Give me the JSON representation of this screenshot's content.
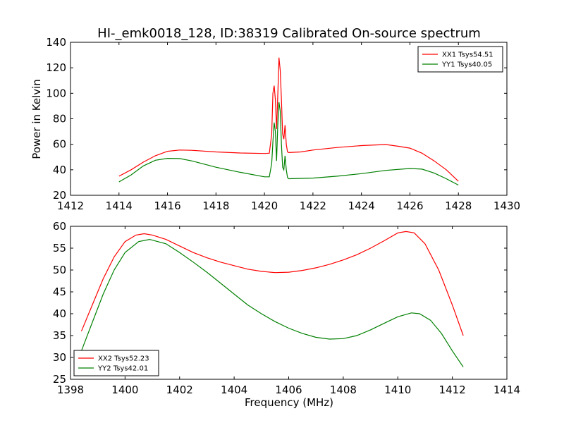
{
  "title": "HI-_emk0018_128, ID:38319 Calibrated On-source spectrum",
  "colors": {
    "red": "#ff0000",
    "green": "#008000",
    "axes": "#000000",
    "background": "#ffffff"
  },
  "chart_data": [
    {
      "type": "line",
      "ylabel": "Power in Kelvin",
      "xlabel": "",
      "xlim": [
        1412,
        1430
      ],
      "ylim": [
        20,
        140
      ],
      "xticks": [
        "1412",
        "1414",
        "1416",
        "1418",
        "1420",
        "1422",
        "1424",
        "1426",
        "1428",
        "1430"
      ],
      "yticks": [
        "20",
        "40",
        "60",
        "80",
        "100",
        "120",
        "140"
      ],
      "grid": false,
      "legend": "top-right",
      "series": [
        {
          "name": "XX1 Tsys54.51",
          "color": "#ff0000",
          "points": [
            [
              1414.0,
              35
            ],
            [
              1414.5,
              40
            ],
            [
              1415.0,
              46
            ],
            [
              1415.5,
              51
            ],
            [
              1416.0,
              54.5
            ],
            [
              1416.5,
              55.5
            ],
            [
              1417.0,
              55.3
            ],
            [
              1418.0,
              54
            ],
            [
              1419.0,
              53.2
            ],
            [
              1420.0,
              52.8
            ],
            [
              1420.2,
              53
            ],
            [
              1420.3,
              68
            ],
            [
              1420.35,
              100
            ],
            [
              1420.4,
              106
            ],
            [
              1420.45,
              95
            ],
            [
              1420.5,
              72
            ],
            [
              1420.55,
              98
            ],
            [
              1420.6,
              128
            ],
            [
              1420.65,
              118
            ],
            [
              1420.7,
              95
            ],
            [
              1420.75,
              68
            ],
            [
              1420.8,
              64
            ],
            [
              1420.85,
              75
            ],
            [
              1420.9,
              60
            ],
            [
              1420.95,
              54
            ],
            [
              1421.0,
              53.5
            ],
            [
              1421.5,
              54
            ],
            [
              1422.0,
              55.5
            ],
            [
              1423.0,
              57.5
            ],
            [
              1424.0,
              59
            ],
            [
              1425.0,
              59.8
            ],
            [
              1425.5,
              58.5
            ],
            [
              1426.0,
              57
            ],
            [
              1426.5,
              53
            ],
            [
              1427.0,
              47
            ],
            [
              1427.5,
              40
            ],
            [
              1428.0,
              31
            ]
          ]
        },
        {
          "name": "YY1 Tsys40.05",
          "color": "#008000",
          "points": [
            [
              1414.0,
              30.5
            ],
            [
              1414.5,
              36
            ],
            [
              1415.0,
              43
            ],
            [
              1415.5,
              47.5
            ],
            [
              1416.0,
              49
            ],
            [
              1416.5,
              48.8
            ],
            [
              1417.0,
              47
            ],
            [
              1418.0,
              42
            ],
            [
              1419.0,
              38
            ],
            [
              1420.0,
              34.5
            ],
            [
              1420.2,
              34.5
            ],
            [
              1420.3,
              45
            ],
            [
              1420.35,
              62
            ],
            [
              1420.4,
              77
            ],
            [
              1420.45,
              70
            ],
            [
              1420.5,
              47
            ],
            [
              1420.55,
              75
            ],
            [
              1420.6,
              93
            ],
            [
              1420.65,
              86
            ],
            [
              1420.7,
              60
            ],
            [
              1420.75,
              42
            ],
            [
              1420.8,
              40
            ],
            [
              1420.85,
              51
            ],
            [
              1420.9,
              40
            ],
            [
              1420.95,
              34
            ],
            [
              1421.0,
              33
            ],
            [
              1422.0,
              33.5
            ],
            [
              1423.0,
              35
            ],
            [
              1424.0,
              37
            ],
            [
              1425.0,
              39.5
            ],
            [
              1426.0,
              41
            ],
            [
              1426.5,
              40.5
            ],
            [
              1427.0,
              37.5
            ],
            [
              1427.5,
              33
            ],
            [
              1428.0,
              28
            ]
          ]
        }
      ]
    },
    {
      "type": "line",
      "ylabel": "",
      "xlabel": "Frequency (MHz)",
      "xlim": [
        1398,
        1414
      ],
      "ylim": [
        25,
        60
      ],
      "xticks": [
        "1398",
        "1400",
        "1402",
        "1404",
        "1406",
        "1408",
        "1410",
        "1412",
        "1414"
      ],
      "yticks": [
        "25",
        "30",
        "35",
        "40",
        "45",
        "50",
        "55",
        "60"
      ],
      "grid": false,
      "legend": "bottom-left",
      "series": [
        {
          "name": "XX2 Tsys52.23",
          "color": "#ff0000",
          "points": [
            [
              1398.4,
              36
            ],
            [
              1398.8,
              42
            ],
            [
              1399.2,
              48
            ],
            [
              1399.6,
              53
            ],
            [
              1400.0,
              56.5
            ],
            [
              1400.4,
              58
            ],
            [
              1400.7,
              58.3
            ],
            [
              1401.0,
              58
            ],
            [
              1401.5,
              57
            ],
            [
              1402.0,
              55.5
            ],
            [
              1402.5,
              54
            ],
            [
              1403.0,
              52.8
            ],
            [
              1403.5,
              51.8
            ],
            [
              1404.0,
              51
            ],
            [
              1404.5,
              50.2
            ],
            [
              1405.0,
              49.7
            ],
            [
              1405.5,
              49.4
            ],
            [
              1406.0,
              49.5
            ],
            [
              1406.5,
              49.9
            ],
            [
              1407.0,
              50.5
            ],
            [
              1407.5,
              51.3
            ],
            [
              1408.0,
              52.3
            ],
            [
              1408.5,
              53.5
            ],
            [
              1409.0,
              55
            ],
            [
              1409.5,
              56.7
            ],
            [
              1410.0,
              58.5
            ],
            [
              1410.3,
              58.8
            ],
            [
              1410.6,
              58.5
            ],
            [
              1411.0,
              56
            ],
            [
              1411.5,
              50
            ],
            [
              1412.0,
              42
            ],
            [
              1412.4,
              35
            ]
          ]
        },
        {
          "name": "YY2 Tsys42.01",
          "color": "#008000",
          "points": [
            [
              1398.4,
              31.5
            ],
            [
              1398.8,
              38
            ],
            [
              1399.2,
              44.5
            ],
            [
              1399.6,
              50
            ],
            [
              1400.0,
              54
            ],
            [
              1400.5,
              56.5
            ],
            [
              1400.9,
              57
            ],
            [
              1401.5,
              56
            ],
            [
              1402.0,
              54
            ],
            [
              1402.5,
              51.8
            ],
            [
              1403.0,
              49.5
            ],
            [
              1403.5,
              47
            ],
            [
              1404.0,
              44.5
            ],
            [
              1404.5,
              42
            ],
            [
              1405.0,
              40
            ],
            [
              1405.5,
              38.2
            ],
            [
              1406.0,
              36.7
            ],
            [
              1406.5,
              35.5
            ],
            [
              1407.0,
              34.6
            ],
            [
              1407.5,
              34.2
            ],
            [
              1408.0,
              34.3
            ],
            [
              1408.5,
              35
            ],
            [
              1409.0,
              36.3
            ],
            [
              1409.5,
              37.8
            ],
            [
              1410.0,
              39.3
            ],
            [
              1410.5,
              40.2
            ],
            [
              1410.8,
              40
            ],
            [
              1411.2,
              38.5
            ],
            [
              1411.6,
              35.5
            ],
            [
              1412.0,
              31.5
            ],
            [
              1412.4,
              27.8
            ]
          ]
        }
      ]
    }
  ]
}
